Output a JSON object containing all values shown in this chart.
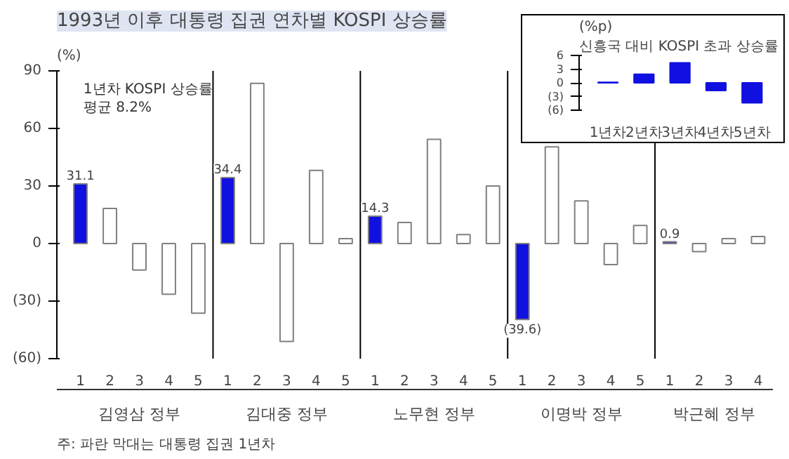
{
  "chart_data": [
    {
      "type": "bar",
      "title": "1993년 이후 대통령 집권 연차별 KOSPI 상승률",
      "ylabel": "(%)",
      "categories": [
        "1",
        "2",
        "3",
        "4",
        "5",
        "1",
        "2",
        "3",
        "4",
        "5",
        "1",
        "2",
        "3",
        "4",
        "5",
        "1",
        "2",
        "3",
        "4",
        "5",
        "1",
        "2",
        "3",
        "4"
      ],
      "values": [
        31.1,
        18.3,
        -13.8,
        -26.4,
        -36.3,
        34.4,
        83.5,
        -51,
        38.1,
        2.6,
        14.3,
        11,
        54.3,
        4.7,
        30,
        -39.6,
        50.4,
        22.2,
        -11,
        9.4,
        0.9,
        -4.2,
        2.6,
        3.7
      ],
      "colors": [
        "#1010e0",
        "#ffffff",
        "#ffffff",
        "#ffffff",
        "#ffffff",
        "#1010e0",
        "#ffffff",
        "#ffffff",
        "#ffffff",
        "#ffffff",
        "#1010e0",
        "#ffffff",
        "#ffffff",
        "#ffffff",
        "#ffffff",
        "#1010e0",
        "#ffffff",
        "#ffffff",
        "#ffffff",
        "#ffffff",
        "#1010e0",
        "#ffffff",
        "#ffffff",
        "#ffffff"
      ],
      "value_labels": [
        "31.1",
        null,
        null,
        null,
        null,
        "34.4",
        null,
        null,
        null,
        null,
        "14.3",
        null,
        null,
        null,
        null,
        "(39.6)",
        null,
        null,
        null,
        null,
        "0.9",
        null,
        null,
        null
      ],
      "ylim": [
        -60,
        90
      ],
      "yticks": [
        {
          "value": -60,
          "label": "(60)"
        },
        {
          "value": -30,
          "label": "(30)"
        },
        0,
        30,
        60,
        90
      ],
      "annotations": [
        "1년차 KOSPI 상승률\n평균 8.2%",
        "김영삼 정부",
        "김대중 정부",
        "노무현 정부",
        "이명박 정부",
        "박근혜 정부",
        "주: 파란 막대는 대통령 집권 1년차"
      ],
      "grid": false
    },
    {
      "type": "bar",
      "title": "신흥국 대비 KOSPI 초과 상승률",
      "ylabel": "(%p)",
      "categories": [
        "1년차",
        "2년차",
        "3년차",
        "4년차",
        "5년차"
      ],
      "series": [
        {
          "color": "#1010e0",
          "values": [
            0.1,
            1.9,
            4.4,
            -1.7,
            -4.4
          ]
        }
      ],
      "ylim": [
        -6,
        6
      ],
      "yticks": [
        {
          "value": -6,
          "label": "(6)"
        },
        {
          "value": -3,
          "label": "(3)"
        },
        0,
        3,
        6
      ],
      "grid": false
    }
  ]
}
